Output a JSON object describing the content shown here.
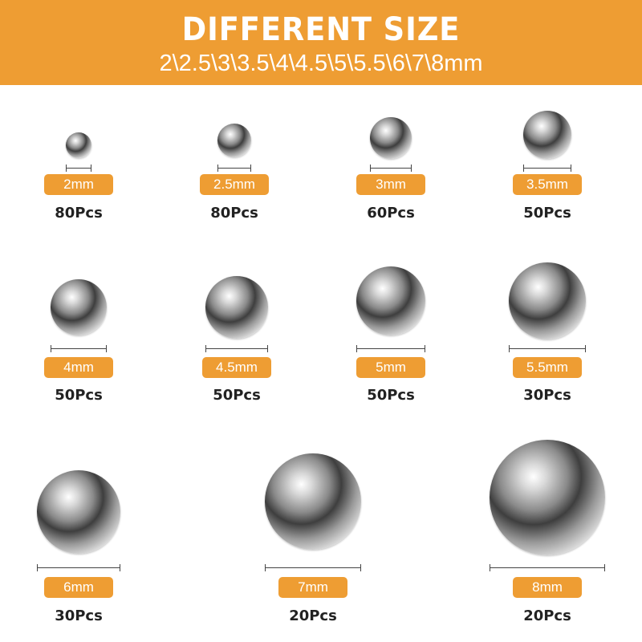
{
  "header": {
    "title": "DIFFERENT SIZE",
    "subtitle": "2\\2.5\\3\\3.5\\4\\4.5\\5\\5.5\\6\\7\\8mm"
  },
  "colors": {
    "accent": "#EE9D33",
    "text": "#222222"
  },
  "items": [
    {
      "size": "2mm",
      "count": "80Pcs"
    },
    {
      "size": "2.5mm",
      "count": "80Pcs"
    },
    {
      "size": "3mm",
      "count": "60Pcs"
    },
    {
      "size": "3.5mm",
      "count": "50Pcs"
    },
    {
      "size": "4mm",
      "count": "50Pcs"
    },
    {
      "size": "4.5mm",
      "count": "50Pcs"
    },
    {
      "size": "5mm",
      "count": "50Pcs"
    },
    {
      "size": "5.5mm",
      "count": "30Pcs"
    },
    {
      "size": "6mm",
      "count": "30Pcs"
    },
    {
      "size": "7mm",
      "count": "20Pcs"
    },
    {
      "size": "8mm",
      "count": "20Pcs"
    }
  ]
}
